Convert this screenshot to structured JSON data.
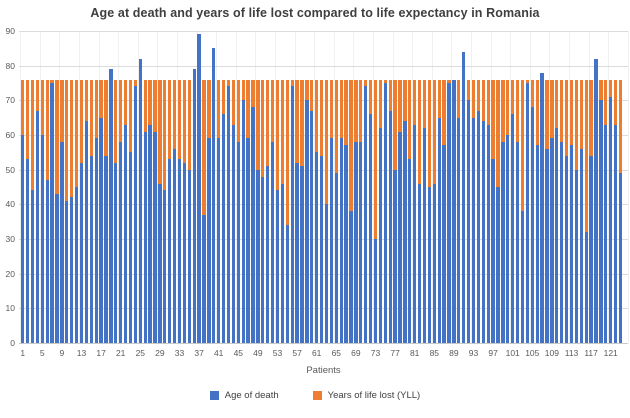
{
  "chart_data": {
    "type": "bar",
    "subtype": "stacked",
    "title": "Age at death and years of life lost compared to life expectancy in Romania",
    "xlabel": "Patients",
    "ylabel": "",
    "ylim": [
      0,
      90
    ],
    "y_tick_step": 10,
    "y_tick_labels": [
      "0",
      "10",
      "20",
      "30",
      "40",
      "50",
      "60",
      "70",
      "80",
      "90"
    ],
    "x_tick_labels": [
      "1",
      "5",
      "9",
      "13",
      "17",
      "21",
      "25",
      "29",
      "33",
      "37",
      "41",
      "45",
      "49",
      "53",
      "57",
      "61",
      "65",
      "69",
      "73",
      "77",
      "81",
      "85",
      "89",
      "93",
      "97",
      "101",
      "105",
      "109",
      "113",
      "117",
      "121"
    ],
    "x_tick_every": 4,
    "life_expectancy": 76,
    "grid": "horizontal-major",
    "legend_position": "bottom",
    "colors": {
      "age_of_death": "#4472C4",
      "years_of_life_lost": "#ED7D31",
      "gridline": "#dcdcdc",
      "axis_text": "#595959",
      "title_text": "#3f3f3f"
    },
    "series": [
      {
        "name": "Age of death",
        "color": "#4472C4",
        "values": [
          60,
          53,
          44,
          67,
          60,
          47,
          75,
          43,
          58,
          41,
          42,
          45,
          52,
          64,
          54,
          59,
          65,
          54,
          79,
          52,
          58,
          63,
          55,
          74,
          82,
          61,
          63,
          61,
          46,
          44,
          53,
          56,
          53,
          52,
          50,
          79,
          89,
          37,
          59,
          85,
          59,
          66,
          74,
          63,
          58,
          70,
          59,
          68,
          50,
          48,
          51,
          58,
          44,
          46,
          34,
          74,
          52,
          51,
          70,
          67,
          55,
          54,
          40,
          59,
          49,
          59,
          57,
          38,
          58,
          58,
          74,
          66,
          30,
          62,
          75,
          67,
          50,
          61,
          64,
          53,
          63,
          46,
          62,
          45,
          46,
          65,
          57,
          75,
          76,
          65,
          84,
          70,
          65,
          67,
          64,
          63,
          53,
          45,
          58,
          60,
          66,
          58,
          38,
          75,
          68,
          57,
          78,
          56,
          59,
          62,
          58,
          54,
          57,
          50,
          56,
          32,
          54,
          82,
          70,
          63,
          71,
          63,
          49
        ]
      },
      {
        "name": "Years of life lost (YLL)",
        "color": "#ED7D31",
        "values": [
          16,
          23,
          32,
          9,
          16,
          29,
          1,
          33,
          18,
          35,
          34,
          31,
          24,
          12,
          22,
          17,
          11,
          22,
          0,
          24,
          18,
          13,
          21,
          2,
          0,
          15,
          13,
          15,
          30,
          32,
          23,
          20,
          23,
          24,
          26,
          0,
          0,
          39,
          17,
          0,
          17,
          10,
          2,
          13,
          18,
          6,
          17,
          8,
          26,
          28,
          25,
          18,
          32,
          30,
          42,
          2,
          24,
          25,
          6,
          9,
          21,
          22,
          36,
          17,
          27,
          17,
          19,
          38,
          18,
          18,
          2,
          10,
          46,
          14,
          1,
          9,
          26,
          15,
          12,
          23,
          13,
          30,
          14,
          31,
          30,
          11,
          19,
          1,
          0,
          11,
          0,
          6,
          11,
          9,
          12,
          13,
          23,
          31,
          18,
          16,
          10,
          18,
          38,
          1,
          8,
          19,
          0,
          20,
          17,
          14,
          18,
          22,
          19,
          26,
          20,
          44,
          22,
          0,
          6,
          13,
          5,
          13,
          27
        ]
      }
    ]
  }
}
